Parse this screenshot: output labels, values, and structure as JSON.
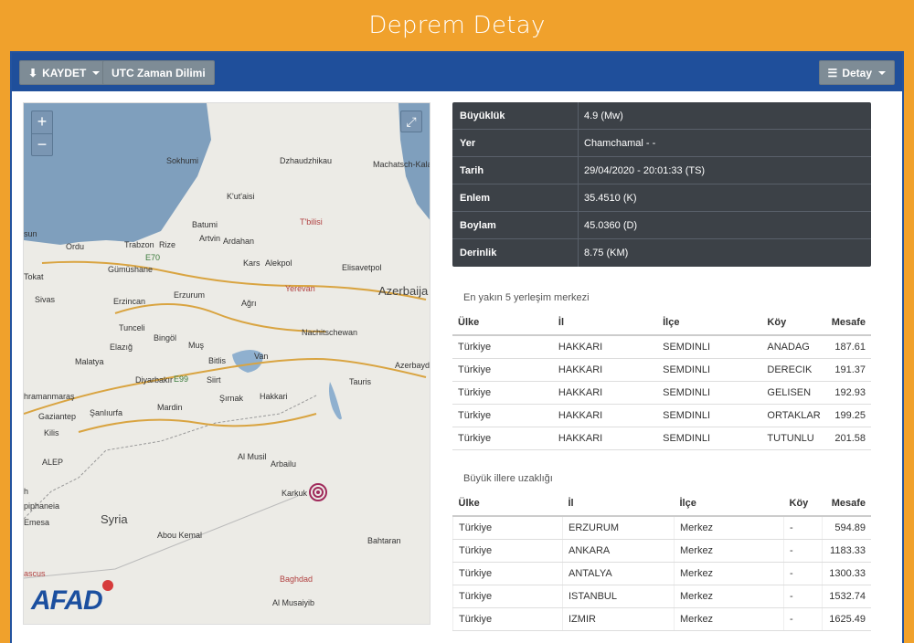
{
  "page": {
    "title": "Deprem Detay"
  },
  "toolbar": {
    "save_label": "KAYDET",
    "utc_label": "UTC Zaman Dilimi",
    "detail_label": "Detay"
  },
  "map": {
    "zoom_in": "+",
    "zoom_out": "−",
    "fullscreen": "⤢",
    "logo": "AFAD",
    "labels": {
      "sokhumi": "Sokhumi",
      "dzhaudzhikau": "Dzhaudzhikau",
      "machatsch": "Machatsch-Kala",
      "kutaisi": "K'ut'aisi",
      "tbilisi": "T'bilisi",
      "batumi": "Batumi",
      "ordu": "Ordu",
      "trabzon": "Trabzon",
      "rize": "Rize",
      "artvin": "Artvin",
      "ardahan": "Ardahan",
      "e70": "E70",
      "gumushane": "Gümüshane",
      "kars": "Kars",
      "alekpol": "Alekpol",
      "elisavetpol": "Elisavetpol",
      "tokat": "Tokat",
      "sivas": "Sivas",
      "erzincan": "Erzincan",
      "erzurum": "Erzurum",
      "agri": "Ağrı",
      "yerevan": "Yerevan",
      "azerbaija": "Azerbaija",
      "nachitschewan": "Nachitschewan",
      "tunceli": "Tunceli",
      "bingol": "Bingöl",
      "elazig": "Elazığ",
      "malatya": "Malatya",
      "mus": "Muş",
      "bitlis": "Bitlis",
      "van": "Van",
      "azerbayd": "Azerbayd",
      "tauris": "Tauris",
      "kahramanmaras": "hramanmaraş",
      "diyarbakir": "Diyarbakır",
      "e99": "E99",
      "siirt": "Siirt",
      "sirnak": "Şırnak",
      "hakkari": "Hakkari",
      "mardin": "Mardin",
      "gaziantep": "Gaziantep",
      "sanliurfa": "Şanlıurfa",
      "kilis": "Kilis",
      "alep": "ALEP",
      "almusil": "Al Musil",
      "arbailu": "Arbailu",
      "karkuk": "Karkuk",
      "phaneia": "piphaneia",
      "emesa": "Emesa",
      "syria": "Syria",
      "aboukemal": "Abou Kemal",
      "bahtaran": "Bahtaran",
      "ascus": "ascus",
      "baghdad": "Baghdad",
      "almusaiyib": "Al Musaiyib",
      "sun": "sun",
      "h": "h"
    }
  },
  "info": {
    "rows": [
      {
        "key": "Büyüklük",
        "value": "4.9 (Mw)"
      },
      {
        "key": "Yer",
        "value": "Chamchamal - -"
      },
      {
        "key": "Tarih",
        "value": "29/04/2020 - 20:01:33 (TS)"
      },
      {
        "key": "Enlem",
        "value": "35.4510 (K)"
      },
      {
        "key": "Boylam",
        "value": "45.0360 (D)"
      },
      {
        "key": "Derinlik",
        "value": "8.75 (KM)"
      }
    ]
  },
  "nearest": {
    "title": "En yakın 5 yerleşim merkezi",
    "headers": [
      "Ülke",
      "İl",
      "İlçe",
      "Köy",
      "Mesafe"
    ],
    "rows": [
      [
        "Türkiye",
        "HAKKARI",
        "SEMDINLI",
        "ANADAG",
        "187.61"
      ],
      [
        "Türkiye",
        "HAKKARI",
        "SEMDINLI",
        "DERECIK",
        "191.37"
      ],
      [
        "Türkiye",
        "HAKKARI",
        "SEMDINLI",
        "GELISEN",
        "192.93"
      ],
      [
        "Türkiye",
        "HAKKARI",
        "SEMDINLI",
        "ORTAKLAR",
        "199.25"
      ],
      [
        "Türkiye",
        "HAKKARI",
        "SEMDINLI",
        "TUTUNLU",
        "201.58"
      ]
    ]
  },
  "cities": {
    "title": "Büyük illere uzaklığı",
    "headers": [
      "Ülke",
      "İl",
      "İlçe",
      "Köy",
      "Mesafe"
    ],
    "rows": [
      [
        "Türkiye",
        "ERZURUM",
        "Merkez",
        "-",
        "594.89"
      ],
      [
        "Türkiye",
        "ANKARA",
        "Merkez",
        "-",
        "1183.33"
      ],
      [
        "Türkiye",
        "ANTALYA",
        "Merkez",
        "-",
        "1300.33"
      ],
      [
        "Türkiye",
        "ISTANBUL",
        "Merkez",
        "-",
        "1532.74"
      ],
      [
        "Türkiye",
        "IZMIR",
        "Merkez",
        "-",
        "1625.49"
      ]
    ]
  }
}
